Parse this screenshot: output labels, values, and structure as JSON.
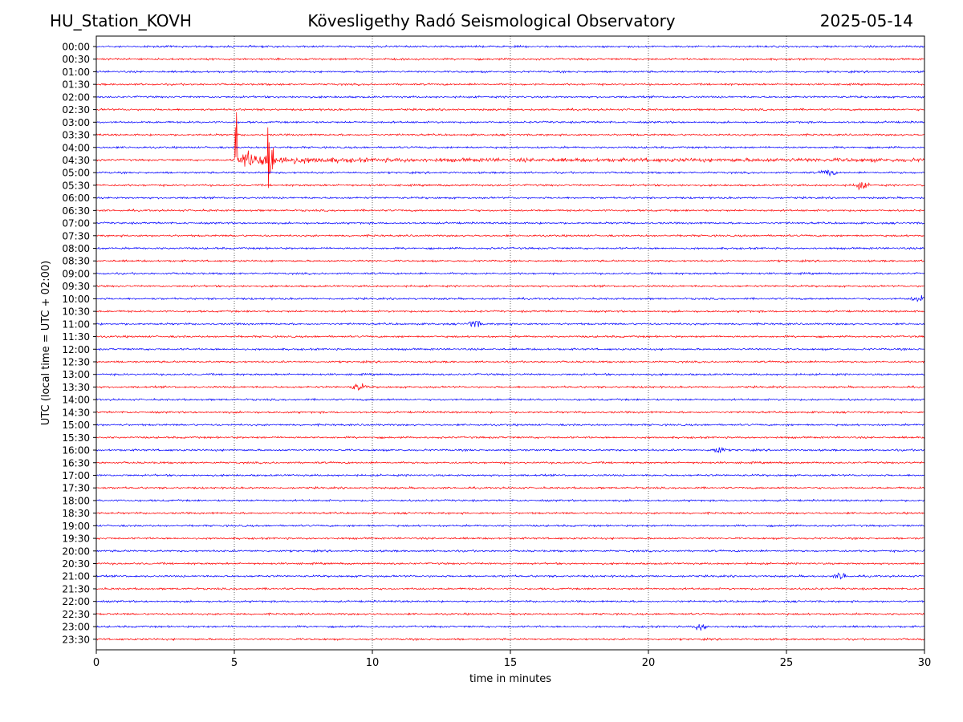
{
  "header": {
    "station": "HU_Station_KOVH",
    "observatory": "Kövesligethy Radó Seismological Observatory",
    "date": "2025-05-14"
  },
  "chart_data": {
    "type": "line",
    "title": "Kövesligethy Radó Seismological Observatory",
    "xlabel": "time in minutes",
    "ylabel": "UTC (local time = UTC + 02:00)",
    "xlim": [
      0,
      30
    ],
    "xticks": [
      0,
      5,
      10,
      15,
      20,
      25,
      30
    ],
    "grid": "vertical dotted lines at x ticks",
    "row_labels": [
      "00:00",
      "00:30",
      "01:00",
      "01:30",
      "02:00",
      "02:30",
      "03:00",
      "03:30",
      "04:00",
      "04:30",
      "05:00",
      "05:30",
      "06:00",
      "06:30",
      "07:00",
      "07:30",
      "08:00",
      "08:30",
      "09:00",
      "09:30",
      "10:00",
      "10:30",
      "11:00",
      "11:30",
      "12:00",
      "12:30",
      "13:00",
      "13:30",
      "14:00",
      "14:30",
      "15:00",
      "15:30",
      "16:00",
      "16:30",
      "17:00",
      "17:30",
      "18:00",
      "18:30",
      "19:00",
      "19:30",
      "20:00",
      "20:30",
      "21:00",
      "21:30",
      "22:00",
      "22:30",
      "23:00",
      "23:30"
    ],
    "trace_colors": [
      "#0000ff",
      "#ff0000"
    ],
    "events": [
      {
        "row": "04:30",
        "start_min": 5.0,
        "secondary_min": 6.2,
        "decay_end_min": 12.0,
        "peak_amplitude": "very large"
      },
      {
        "row": "11:00",
        "start_min": 13.7,
        "peak_amplitude": "small"
      },
      {
        "row": "05:30",
        "start_min": 27.7,
        "peak_amplitude": "small"
      },
      {
        "row": "05:00",
        "start_min": 26.5,
        "peak_amplitude": "small"
      },
      {
        "row": "13:30",
        "start_min": 9.5,
        "peak_amplitude": "small"
      },
      {
        "row": "16:00",
        "start_min": 22.5,
        "peak_amplitude": "small"
      },
      {
        "row": "23:00",
        "start_min": 21.9,
        "peak_amplitude": "small"
      },
      {
        "row": "21:00",
        "start_min": 27.0,
        "peak_amplitude": "small"
      },
      {
        "row": "10:00",
        "start_min": 29.8,
        "peak_amplitude": "small"
      }
    ]
  }
}
